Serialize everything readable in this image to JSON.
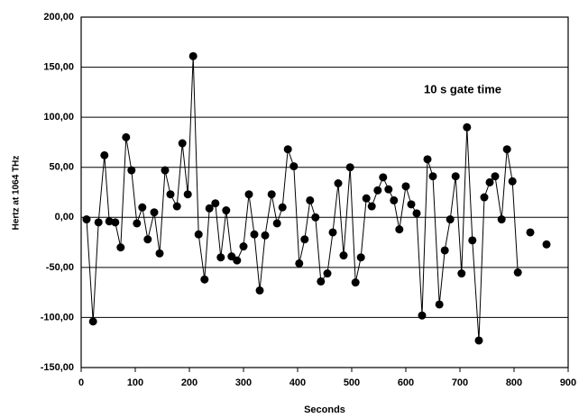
{
  "chart_data": {
    "type": "line",
    "annotation": "10 s gate time",
    "xlabel": "Seconds",
    "ylabel": "Hertz at 1064 THz",
    "x": [
      10,
      22,
      32,
      43,
      52,
      63,
      73,
      83,
      93,
      103,
      113,
      123,
      135,
      145,
      155,
      165,
      177,
      187,
      197,
      207,
      217,
      228,
      237,
      248,
      258,
      268,
      278,
      288,
      300,
      310,
      320,
      330,
      340,
      352,
      362,
      372,
      382,
      393,
      403,
      413,
      423,
      433,
      443,
      455,
      465,
      475,
      485,
      497,
      507,
      517,
      527,
      537,
      548,
      558,
      568,
      578,
      588,
      600,
      610,
      620,
      630,
      640,
      650,
      662,
      672,
      682,
      692,
      703,
      713,
      723,
      735,
      745,
      755,
      765,
      777,
      787,
      797,
      807,
      null,
      830,
      null,
      860
    ],
    "series": [
      {
        "color": "#000000",
        "values": [
          -2,
          -104,
          -5,
          62,
          -4,
          -5,
          -30,
          80,
          47,
          -6,
          10,
          -22,
          5,
          -36,
          47,
          23,
          11,
          74,
          23,
          161,
          -17,
          -62,
          9,
          14,
          -40,
          7,
          -39,
          -43,
          -29,
          23,
          -17,
          -73,
          -18,
          23,
          -6,
          10,
          68,
          51,
          -46,
          -22,
          17,
          0,
          -64,
          -56,
          -15,
          34,
          -38,
          50,
          -65,
          -40,
          19,
          11,
          27,
          40,
          28,
          17,
          -12,
          31,
          13,
          4,
          -98,
          58,
          41,
          -87,
          -33,
          -2,
          41,
          -56,
          90,
          -23,
          -123,
          20,
          35,
          41,
          -2,
          68,
          36,
          -55,
          null,
          -15,
          null,
          -27
        ]
      }
    ],
    "xlim": [
      0,
      900
    ],
    "xticks": [
      0,
      100,
      200,
      300,
      400,
      500,
      600,
      700,
      800,
      900
    ],
    "ylim": [
      -150,
      200
    ],
    "yticks": [
      {
        "value": -150,
        "label": "-150,00"
      },
      {
        "value": -100,
        "label": "-100,00"
      },
      {
        "value": -50,
        "label": "-50,00"
      },
      {
        "value": 0,
        "label": "0,00"
      },
      {
        "value": 50,
        "label": "50,00"
      },
      {
        "value": 100,
        "label": "100,00"
      },
      {
        "value": 150,
        "label": "150,00"
      },
      {
        "value": 200,
        "label": "200,00"
      }
    ],
    "grid": true
  }
}
